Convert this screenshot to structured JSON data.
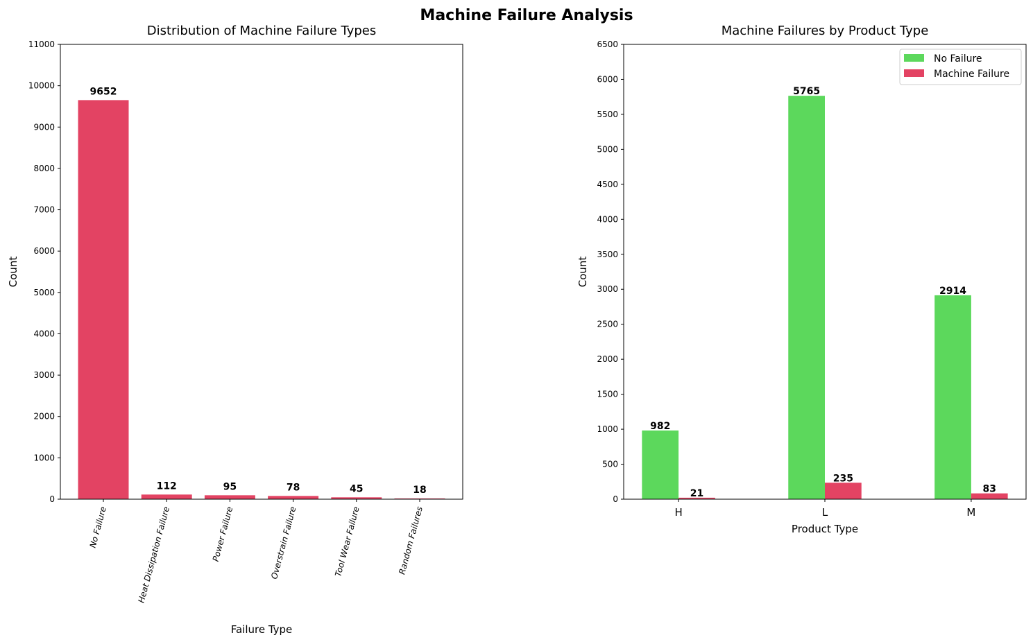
{
  "figure": {
    "title": "Machine Failure Analysis"
  },
  "colors": {
    "red": "#e34363",
    "green": "#5cd85c"
  },
  "chart_data": [
    {
      "type": "bar",
      "title": "Distribution of Machine Failure Types",
      "xlabel": "Failure Type",
      "ylabel": "Count",
      "ylim": [
        0,
        11000
      ],
      "yticks": [
        0,
        1000,
        2000,
        3000,
        4000,
        5000,
        6000,
        7000,
        8000,
        9000,
        10000,
        11000
      ],
      "categories": [
        "No Failure",
        "Heat Dissipation Failure",
        "Power Failure",
        "Overstrain Failure",
        "Tool Wear Failure",
        "Random Failures"
      ],
      "values": [
        9652,
        112,
        95,
        78,
        45,
        18
      ],
      "grid": false,
      "legend": "none"
    },
    {
      "type": "bar",
      "title": "Machine Failures by Product Type",
      "xlabel": "Product Type",
      "ylabel": "Count",
      "ylim": [
        0,
        6500
      ],
      "yticks": [
        0,
        500,
        1000,
        1500,
        2000,
        2500,
        3000,
        3500,
        4000,
        4500,
        5000,
        5500,
        6000,
        6500
      ],
      "categories": [
        "H",
        "L",
        "M"
      ],
      "series": [
        {
          "name": "No Failure",
          "values": [
            982,
            5765,
            2914
          ]
        },
        {
          "name": "Machine Failure",
          "values": [
            21,
            235,
            83
          ]
        }
      ],
      "grid": false,
      "legend": "top-right"
    }
  ]
}
